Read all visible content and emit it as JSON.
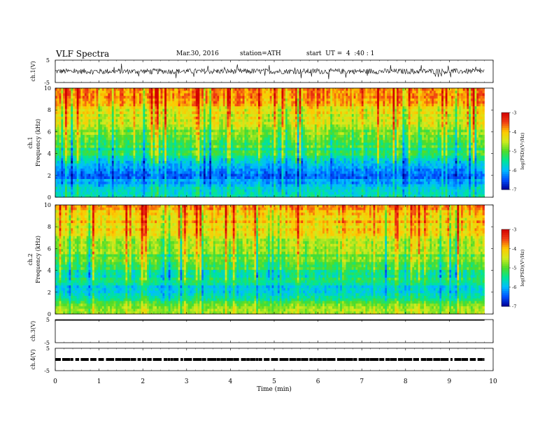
{
  "header": {
    "title": "VLF Spectra",
    "date": "Mar.30, 2016",
    "station": "station=ATH",
    "start": "start  UT =  4  :40 : 1"
  },
  "chart_data": [
    {
      "type": "line",
      "panel": "ch1-waveform",
      "ylabel": "ch.1(V)",
      "ylim": [
        -5,
        5
      ],
      "yticks": [
        "5",
        "-5"
      ],
      "xlim": [
        0,
        10
      ],
      "x_end": 9.8,
      "noise_amplitude": 1.2
    },
    {
      "type": "heatmap",
      "panel": "ch1-spectrogram",
      "ylabel_top": "ch.1",
      "ylabel": "Frequency (kHz)",
      "ylim": [
        0,
        10
      ],
      "yticks": [
        "0",
        "2",
        "4",
        "6",
        "8",
        "10"
      ],
      "xlim": [
        0,
        10
      ],
      "x_end": 9.8,
      "colorbar": {
        "label": "log(PSD)(V²/Hz)",
        "range": [
          -7,
          -3
        ],
        "ticks": [
          "-3",
          "-4",
          "-5",
          "-6",
          "-7"
        ]
      },
      "mean_log_psd_by_freq": [
        {
          "khz": 0.5,
          "log_psd": -5.6
        },
        {
          "khz": 2,
          "log_psd": -6.4
        },
        {
          "khz": 4,
          "log_psd": -5.4
        },
        {
          "khz": 6,
          "log_psd": -4.8
        },
        {
          "khz": 8,
          "log_psd": -4.2
        },
        {
          "khz": 10,
          "log_psd": -3.7
        }
      ]
    },
    {
      "type": "heatmap",
      "panel": "ch2-spectrogram",
      "ylabel_top": "ch.2",
      "ylabel": "Frequency (kHz)",
      "ylim": [
        0,
        10
      ],
      "yticks": [
        "0",
        "2",
        "4",
        "6",
        "8",
        "10"
      ],
      "xlim": [
        0,
        10
      ],
      "x_end": 9.8,
      "colorbar": {
        "label": "log(PSD)(V²/Hz)",
        "range": [
          -7,
          -3
        ],
        "ticks": [
          "-3",
          "-4",
          "-5",
          "-6",
          "-7"
        ]
      },
      "mean_log_psd_by_freq": [
        {
          "khz": 0.5,
          "log_psd": -4.8
        },
        {
          "khz": 2,
          "log_psd": -5.9
        },
        {
          "khz": 4,
          "log_psd": -5.3
        },
        {
          "khz": 6,
          "log_psd": -4.7
        },
        {
          "khz": 8,
          "log_psd": -4.2
        },
        {
          "khz": 10,
          "log_psd": -3.9
        }
      ]
    },
    {
      "type": "line",
      "panel": "ch3-waveform",
      "ylabel": "ch.3(V)",
      "ylim": [
        -5,
        5
      ],
      "yticks": [
        "5",
        "-5"
      ],
      "xlim": [
        0,
        10
      ],
      "x_end": 9.8,
      "level": 5
    },
    {
      "type": "line",
      "panel": "ch4-waveform",
      "ylabel": "ch.4(V)",
      "ylim": [
        -5,
        5
      ],
      "yticks": [
        "5",
        "-5"
      ],
      "xlim": [
        0,
        10
      ],
      "x_end": 9.8,
      "level": 0,
      "xlabel": "Time  (min)",
      "xticks": [
        "0",
        "1",
        "2",
        "3",
        "4",
        "5",
        "6",
        "7",
        "8",
        "9",
        "10"
      ]
    }
  ]
}
